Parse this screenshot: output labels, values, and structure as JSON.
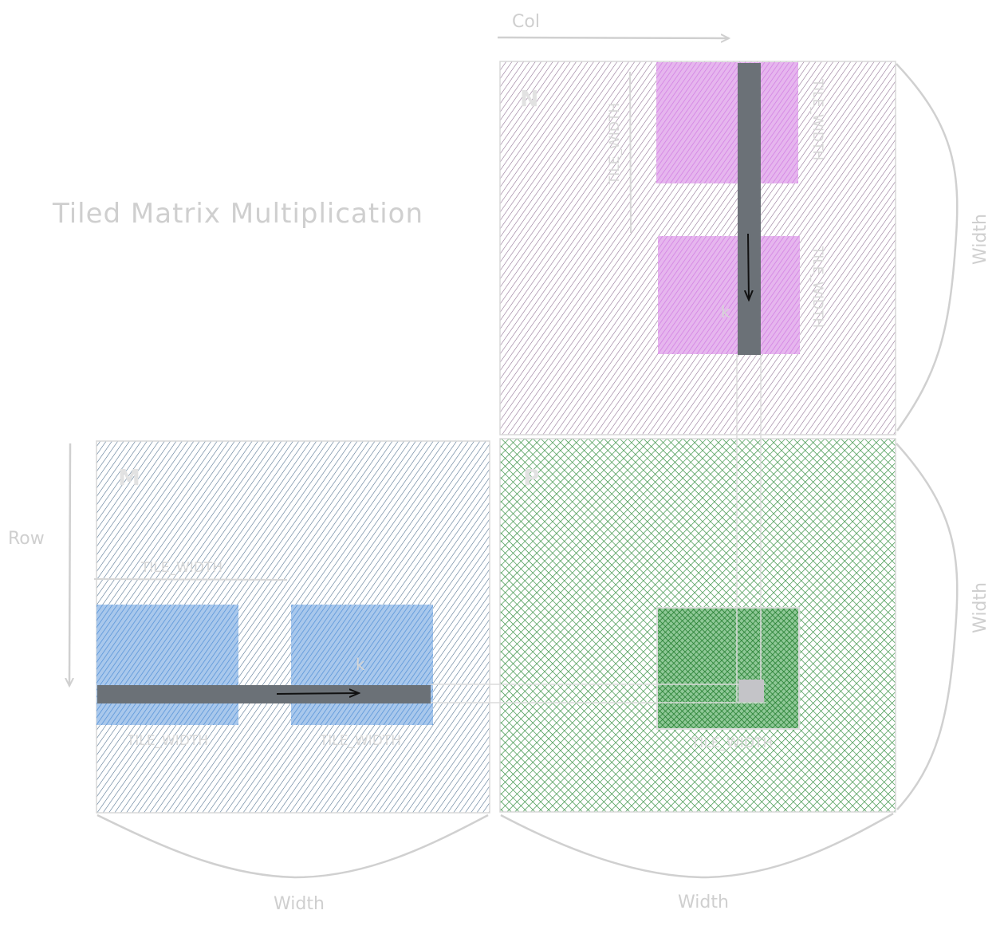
{
  "title": "Tiled Matrix Multiplication",
  "axis_labels": {
    "col": "Col",
    "row": "Row"
  },
  "dimension_labels": {
    "m_bottom": "Width",
    "p_bottom": "Width",
    "n_right": "Width",
    "p_right": "Width"
  },
  "matrices": {
    "m": {
      "label": "M",
      "color": "#4a6b8a",
      "tile_color": "#5a95d6"
    },
    "n": {
      "label": "N",
      "color": "#8a6a8e",
      "tile_color": "#d98be8"
    },
    "p": {
      "label": "P",
      "color": "#2e8b3a",
      "tile_color": "#2e8b3a"
    }
  },
  "tile_labels": {
    "m_tile_width_top": "TILE_WIDTH",
    "m_tile_1": "TILE_WIDTH",
    "m_tile_2": "TILE_WIDTH",
    "n_tile_1": "TILE_WIDTH",
    "n_tile_2": "TILE_WIDTH",
    "n_tile_left": "TILE_WIDTH",
    "p_tile": "TILE_WIDTH",
    "m_k": "k",
    "n_k": "k"
  },
  "colors": {
    "bar": "#6b7177",
    "guide": "#d0d0d0",
    "element": "#c4c4c8"
  }
}
